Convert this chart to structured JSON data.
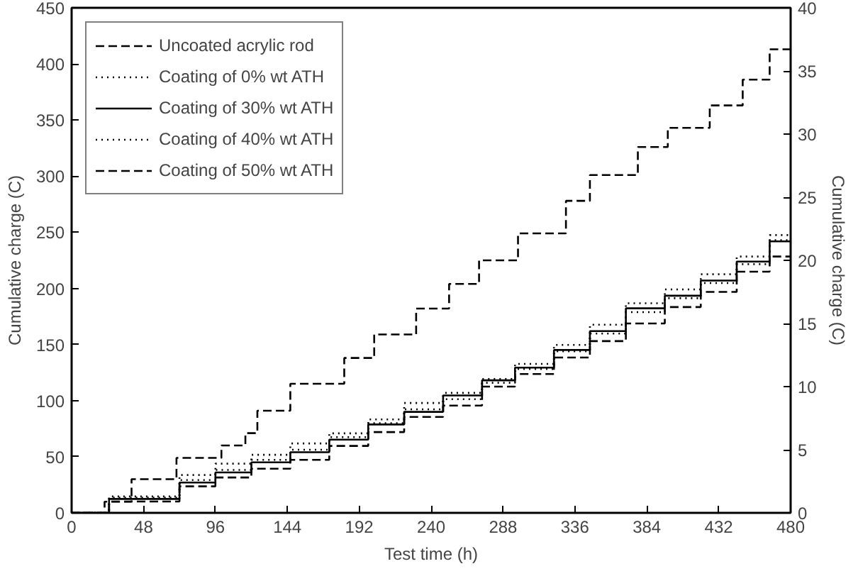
{
  "chart_data": {
    "type": "step",
    "xlabel": "Test time (h)",
    "ylabel": "Cumulative charge (C)",
    "y2label": "Cumulative charge (C)",
    "xlim": [
      0,
      480
    ],
    "xticks": [
      0,
      48,
      96,
      144,
      192,
      240,
      288,
      336,
      384,
      432,
      480
    ],
    "ylim": [
      0,
      450
    ],
    "yticks": [
      0,
      50,
      100,
      150,
      200,
      250,
      300,
      350,
      400,
      450
    ],
    "y2lim": [
      0,
      40
    ],
    "y2ticks": [
      0,
      5,
      10,
      15,
      20,
      25,
      30,
      35,
      40
    ],
    "grid": false,
    "legend": "top left",
    "marker": "none",
    "series": [
      {
        "name": "Uncoated acrylic rod",
        "color": "#000000",
        "line_style": "dashed",
        "x": [
          0,
          22,
          40,
          70,
          100,
          116,
          124,
          146,
          182,
          202,
          230,
          252,
          272,
          298,
          330,
          346,
          378,
          398,
          426,
          448,
          466,
          480
        ],
        "values": [
          0,
          10,
          30,
          49,
          60,
          71,
          91,
          115,
          138,
          159,
          182,
          204,
          225,
          249,
          278,
          301,
          326,
          343,
          363,
          386,
          413,
          413
        ]
      },
      {
        "name": "Coating of 0% wt ATH",
        "color": "#000000",
        "line_style": "dotted",
        "axis": "y2",
        "x": [
          0,
          25,
          72,
          96,
          120,
          146,
          172,
          198,
          222,
          248,
          274,
          296,
          322,
          346,
          370,
          396,
          420,
          444,
          466,
          480
        ],
        "values": [
          0,
          1.3,
          3.0,
          3.9,
          4.6,
          5.5,
          6.3,
          7.4,
          8.7,
          9.5,
          10.6,
          11.8,
          13.3,
          14.9,
          16.6,
          17.7,
          18.9,
          20.3,
          22.0,
          22.0
        ]
      },
      {
        "name": "Coating of 30% wt ATH",
        "color": "#000000",
        "line_style": "solid",
        "axis": "y2",
        "x": [
          0,
          25,
          72,
          96,
          120,
          146,
          172,
          198,
          222,
          248,
          274,
          296,
          322,
          346,
          370,
          396,
          420,
          444,
          466,
          480
        ],
        "values": [
          0,
          1.1,
          2.4,
          3.2,
          4.0,
          4.8,
          5.8,
          7.0,
          8.0,
          9.3,
          10.5,
          11.5,
          12.9,
          14.4,
          16.2,
          17.2,
          18.4,
          19.9,
          21.5,
          21.5
        ]
      },
      {
        "name": "Coating of 40% wt ATH",
        "color": "#000000",
        "line_style": "dotted",
        "axis": "y2",
        "x": [
          0,
          25,
          72,
          96,
          120,
          146,
          172,
          198,
          222,
          248,
          274,
          296,
          322,
          346,
          370,
          396,
          420,
          444,
          466,
          480
        ],
        "values": [
          0,
          1.2,
          2.6,
          3.4,
          4.2,
          5.0,
          6.0,
          7.1,
          8.2,
          9.0,
          10.3,
          11.4,
          12.8,
          14.2,
          15.9,
          17.0,
          18.2,
          19.7,
          21.6,
          21.6
        ]
      },
      {
        "name": "Coating of 50% wt ATH",
        "color": "#000000",
        "line_style": "dashed",
        "axis": "y2",
        "x": [
          0,
          25,
          72,
          96,
          120,
          146,
          172,
          198,
          222,
          248,
          274,
          296,
          322,
          346,
          370,
          396,
          420,
          444,
          466,
          480
        ],
        "values": [
          0,
          0.9,
          2.1,
          2.8,
          3.5,
          4.2,
          5.3,
          6.4,
          7.6,
          8.5,
          10.0,
          11.0,
          12.3,
          13.6,
          15.0,
          16.3,
          17.5,
          19.1,
          20.3,
          20.3
        ]
      }
    ]
  }
}
